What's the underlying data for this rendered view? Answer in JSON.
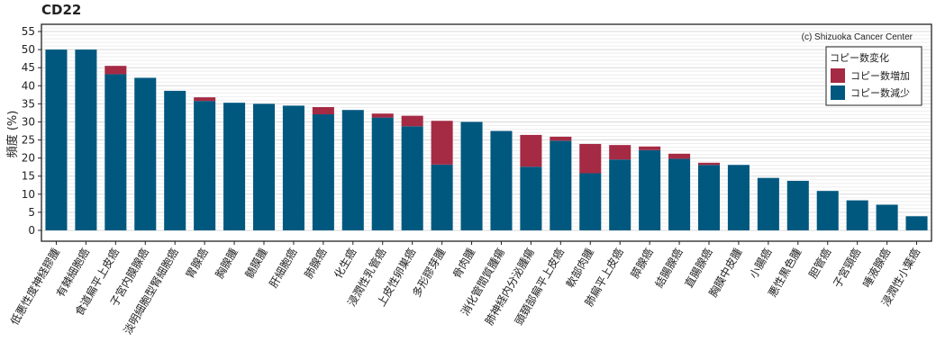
{
  "chart_data": {
    "type": "bar",
    "stacked": true,
    "title": "CD22",
    "ylabel": "頻度 (%)",
    "xlabel": "",
    "ylim": [
      -3,
      57
    ],
    "yticks": [
      0,
      5,
      10,
      15,
      20,
      25,
      30,
      35,
      40,
      45,
      50,
      55
    ],
    "grid": true,
    "copyright": "(c) Shizuoka Cancer Center",
    "legend": {
      "title": "コピー数変化",
      "position": "top-right",
      "entries": [
        {
          "label": "コピー数増加",
          "color": "#a52a44"
        },
        {
          "label": "コピー数減少",
          "color": "#00587f"
        }
      ]
    },
    "categories": [
      "低悪性度神経膠腫",
      "有棘細胞癌",
      "食道扁平上皮癌",
      "子宮内膜腺癌",
      "淡明細胞型腎細胞癌",
      "胃腺癌",
      "胸腺腫",
      "髄膜腫",
      "肝細胞癌",
      "肺腺癌",
      "化生癌",
      "浸潤性乳管癌",
      "上皮性卵巣癌",
      "多形膠芽腫",
      "骨肉腫",
      "消化管間質腫瘍",
      "肺神経内分泌腫瘍",
      "頭頚部扁平上皮癌",
      "軟部肉腫",
      "肺扁平上皮癌",
      "膵腺癌",
      "結腸腺癌",
      "直腸腺癌",
      "胸膜中皮腫",
      "小腸癌",
      "悪性黒色腫",
      "胆管癌",
      "子宮頸癌",
      "唾液腺癌",
      "浸潤性小葉癌"
    ],
    "series": [
      {
        "name": "コピー数減少",
        "color": "#00587f",
        "values": [
          50.0,
          50.0,
          43.2,
          42.2,
          38.6,
          35.8,
          35.3,
          35.0,
          34.5,
          32.1,
          33.3,
          31.2,
          28.8,
          18.2,
          30.0,
          27.5,
          17.6,
          24.8,
          15.8,
          19.6,
          22.2,
          19.8,
          18.1,
          18.1,
          14.5,
          13.7,
          10.9,
          8.3,
          7.1,
          3.9
        ]
      },
      {
        "name": "コピー数増加",
        "color": "#a52a44",
        "values": [
          0,
          0,
          2.3,
          0,
          0,
          1.0,
          0,
          0,
          0,
          2.0,
          0,
          1.1,
          2.9,
          12.1,
          0,
          0,
          8.8,
          1.1,
          8.1,
          4.0,
          1.0,
          1.4,
          0.6,
          0,
          0,
          0,
          0,
          0,
          0,
          0
        ]
      }
    ]
  }
}
